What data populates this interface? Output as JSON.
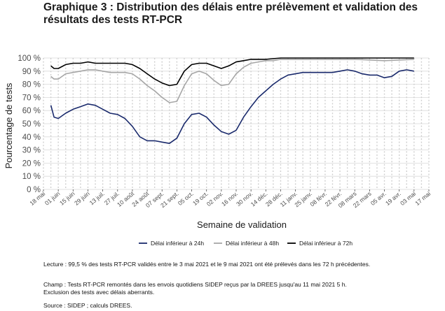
{
  "title": "Graphique 3 : Distribution des délais entre prélèvement et validation des résultats des tests RT-PCR",
  "notes": {
    "lecture": "Lecture : 99,5 % des tests RT-PCR validés entre le 3 mai 2021 et le 9 mai 2021 ont été prélevés dans les 72 h précédentes.",
    "champ": "Champ : Tests RT-PCR remontés dans les envois quotidiens SIDEP reçus par la DREES jusqu'au 11 mai 2021 5 h.",
    "exclusion": "Exclusion des tests avec délais aberrants.",
    "source": "Source : SIDEP ; calculs DREES."
  },
  "chart_data": {
    "type": "line",
    "title": "Graphique 3 : Distribution des délais entre prélèvement et validation des résultats des tests RT-PCR",
    "xlabel": "Semaine de validation",
    "ylabel": "Pourcentage de tests",
    "ylim": [
      0,
      100
    ],
    "y_ticks": [
      "0 %",
      "10 %",
      "20 %",
      "30 %",
      "40 %",
      "50 %",
      "60 %",
      "70 %",
      "80 %",
      "90 %",
      "100 %"
    ],
    "x_range": [
      "2020-05-18",
      "2021-05-17"
    ],
    "x_ticks": [
      {
        "date": "2020-05-18",
        "label": "18 mai"
      },
      {
        "date": "2020-06-01",
        "label": "01 juin"
      },
      {
        "date": "2020-06-15",
        "label": "15 juin"
      },
      {
        "date": "2020-06-29",
        "label": "29 juin"
      },
      {
        "date": "2020-07-13",
        "label": "13 juil."
      },
      {
        "date": "2020-07-27",
        "label": "27 juil."
      },
      {
        "date": "2020-08-10",
        "label": "10 août"
      },
      {
        "date": "2020-08-24",
        "label": "24 août"
      },
      {
        "date": "2020-09-07",
        "label": "07 sept."
      },
      {
        "date": "2020-09-21",
        "label": "21 sept."
      },
      {
        "date": "2020-10-05",
        "label": "05 oct."
      },
      {
        "date": "2020-10-19",
        "label": "19 oct."
      },
      {
        "date": "2020-11-02",
        "label": "02 nov."
      },
      {
        "date": "2020-11-16",
        "label": "16 nov."
      },
      {
        "date": "2020-11-30",
        "label": "30 nov."
      },
      {
        "date": "2020-12-14",
        "label": "14 déc."
      },
      {
        "date": "2020-12-28",
        "label": "28 déc."
      },
      {
        "date": "2021-01-11",
        "label": "11 janv."
      },
      {
        "date": "2021-01-25",
        "label": "25 janv."
      },
      {
        "date": "2021-02-08",
        "label": "08 févr."
      },
      {
        "date": "2021-02-22",
        "label": "22 févr."
      },
      {
        "date": "2021-03-08",
        "label": "08 mars"
      },
      {
        "date": "2021-03-22",
        "label": "22 mars"
      },
      {
        "date": "2021-04-05",
        "label": "05 avr."
      },
      {
        "date": "2021-04-19",
        "label": "19 avr."
      },
      {
        "date": "2021-05-03",
        "label": "03 mai"
      },
      {
        "date": "2021-05-17",
        "label": "17 mai"
      }
    ],
    "grid": true,
    "legend_position": "bottom",
    "series": [
      {
        "name": "Délai inférieur à 24h",
        "color": "#1a2a6c",
        "points": [
          [
            "2020-05-25",
            64
          ],
          [
            "2020-05-28",
            55
          ],
          [
            "2020-06-01",
            54
          ],
          [
            "2020-06-08",
            58
          ],
          [
            "2020-06-15",
            61
          ],
          [
            "2020-06-22",
            63
          ],
          [
            "2020-06-29",
            65
          ],
          [
            "2020-07-06",
            64
          ],
          [
            "2020-07-13",
            61
          ],
          [
            "2020-07-20",
            58
          ],
          [
            "2020-07-27",
            57
          ],
          [
            "2020-08-03",
            54
          ],
          [
            "2020-08-10",
            48
          ],
          [
            "2020-08-17",
            40
          ],
          [
            "2020-08-24",
            37
          ],
          [
            "2020-08-31",
            37
          ],
          [
            "2020-09-07",
            36
          ],
          [
            "2020-09-14",
            35
          ],
          [
            "2020-09-21",
            39
          ],
          [
            "2020-09-28",
            50
          ],
          [
            "2020-10-05",
            57
          ],
          [
            "2020-10-12",
            58
          ],
          [
            "2020-10-19",
            55
          ],
          [
            "2020-10-26",
            49
          ],
          [
            "2020-11-02",
            44
          ],
          [
            "2020-11-09",
            42
          ],
          [
            "2020-11-16",
            45
          ],
          [
            "2020-11-23",
            55
          ],
          [
            "2020-11-30",
            63
          ],
          [
            "2020-12-07",
            70
          ],
          [
            "2020-12-14",
            75
          ],
          [
            "2020-12-21",
            80
          ],
          [
            "2020-12-28",
            84
          ],
          [
            "2021-01-04",
            87
          ],
          [
            "2021-01-11",
            88
          ],
          [
            "2021-01-18",
            89
          ],
          [
            "2021-01-25",
            89
          ],
          [
            "2021-02-01",
            89
          ],
          [
            "2021-02-08",
            89
          ],
          [
            "2021-02-15",
            89
          ],
          [
            "2021-02-22",
            90
          ],
          [
            "2021-03-01",
            91
          ],
          [
            "2021-03-08",
            90
          ],
          [
            "2021-03-15",
            88
          ],
          [
            "2021-03-22",
            87
          ],
          [
            "2021-03-29",
            87
          ],
          [
            "2021-04-05",
            85
          ],
          [
            "2021-04-12",
            86
          ],
          [
            "2021-04-19",
            90
          ],
          [
            "2021-04-26",
            91
          ],
          [
            "2021-05-03",
            90
          ]
        ]
      },
      {
        "name": "Délai inférieur à 48h",
        "color": "#a6a6a6",
        "points": [
          [
            "2020-05-25",
            86
          ],
          [
            "2020-05-28",
            84
          ],
          [
            "2020-06-01",
            84
          ],
          [
            "2020-06-08",
            88
          ],
          [
            "2020-06-15",
            89
          ],
          [
            "2020-06-22",
            90
          ],
          [
            "2020-06-29",
            91
          ],
          [
            "2020-07-06",
            91
          ],
          [
            "2020-07-13",
            90
          ],
          [
            "2020-07-20",
            89
          ],
          [
            "2020-07-27",
            89
          ],
          [
            "2020-08-03",
            89
          ],
          [
            "2020-08-10",
            88
          ],
          [
            "2020-08-17",
            84
          ],
          [
            "2020-08-24",
            79
          ],
          [
            "2020-08-31",
            75
          ],
          [
            "2020-09-07",
            70
          ],
          [
            "2020-09-14",
            66
          ],
          [
            "2020-09-21",
            67
          ],
          [
            "2020-09-28",
            79
          ],
          [
            "2020-10-05",
            88
          ],
          [
            "2020-10-12",
            90
          ],
          [
            "2020-10-19",
            88
          ],
          [
            "2020-10-26",
            83
          ],
          [
            "2020-11-02",
            79
          ],
          [
            "2020-11-09",
            80
          ],
          [
            "2020-11-16",
            88
          ],
          [
            "2020-11-23",
            93
          ],
          [
            "2020-11-30",
            96
          ],
          [
            "2020-12-07",
            97
          ],
          [
            "2020-12-14",
            98
          ],
          [
            "2020-12-21",
            98
          ],
          [
            "2020-12-28",
            99
          ],
          [
            "2021-01-11",
            99
          ],
          [
            "2021-02-08",
            99
          ],
          [
            "2021-03-08",
            99
          ],
          [
            "2021-04-05",
            98
          ],
          [
            "2021-05-03",
            99
          ]
        ]
      },
      {
        "name": "Délai inférieur à 72h",
        "color": "#000000",
        "points": [
          [
            "2020-05-25",
            94
          ],
          [
            "2020-05-28",
            92
          ],
          [
            "2020-06-01",
            92
          ],
          [
            "2020-06-08",
            95
          ],
          [
            "2020-06-15",
            96
          ],
          [
            "2020-06-22",
            96
          ],
          [
            "2020-06-29",
            97
          ],
          [
            "2020-07-06",
            96
          ],
          [
            "2020-07-13",
            96
          ],
          [
            "2020-07-20",
            96
          ],
          [
            "2020-07-27",
            96
          ],
          [
            "2020-08-03",
            96
          ],
          [
            "2020-08-10",
            95
          ],
          [
            "2020-08-17",
            92
          ],
          [
            "2020-08-24",
            88
          ],
          [
            "2020-08-31",
            84
          ],
          [
            "2020-09-07",
            81
          ],
          [
            "2020-09-14",
            79
          ],
          [
            "2020-09-21",
            80
          ],
          [
            "2020-09-28",
            90
          ],
          [
            "2020-10-05",
            95
          ],
          [
            "2020-10-12",
            96
          ],
          [
            "2020-10-19",
            96
          ],
          [
            "2020-10-26",
            94
          ],
          [
            "2020-11-02",
            92
          ],
          [
            "2020-11-09",
            94
          ],
          [
            "2020-11-16",
            97
          ],
          [
            "2020-11-23",
            98
          ],
          [
            "2020-11-30",
            99
          ],
          [
            "2020-12-14",
            99
          ],
          [
            "2020-12-28",
            100
          ],
          [
            "2021-01-11",
            100
          ],
          [
            "2021-02-08",
            100
          ],
          [
            "2021-03-08",
            100
          ],
          [
            "2021-04-05",
            100
          ],
          [
            "2021-05-03",
            100
          ]
        ]
      }
    ]
  }
}
